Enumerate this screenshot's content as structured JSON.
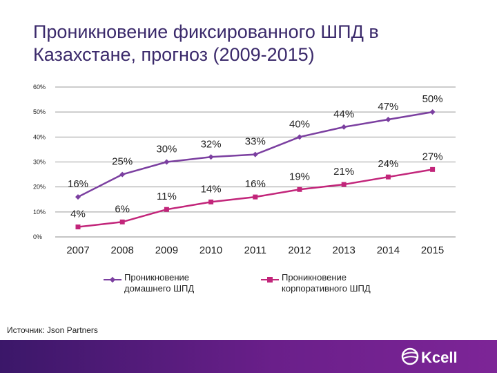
{
  "title": "Проникновение фиксированного ШПД в Казахстане, прогноз (2009-2015)",
  "chart_data": {
    "type": "line",
    "title": "Проникновение фиксированного ШПД в Казахстане, прогноз (2009-2015)",
    "categories": [
      "2007",
      "2008",
      "2009",
      "2010",
      "2011",
      "2012",
      "2013",
      "2014",
      "2015"
    ],
    "ylim": [
      0,
      60
    ],
    "yticks": [
      0,
      10,
      20,
      30,
      40,
      50,
      60
    ],
    "ytick_labels": [
      "0%",
      "10%",
      "20%",
      "30%",
      "40%",
      "50%",
      "60%"
    ],
    "grid": true,
    "series": [
      {
        "name": "Проникновение домашнего ШПД",
        "color": "#7b3fa0",
        "values": [
          16,
          25,
          30,
          32,
          33,
          40,
          44,
          47,
          50
        ],
        "labels": [
          "16%",
          "25%",
          "30%",
          "32%",
          "33%",
          "40%",
          "44%",
          "47%",
          "50%"
        ]
      },
      {
        "name": "Проникновение корпоративного ШПД",
        "color": "#c2257a",
        "values": [
          4,
          6,
          11,
          14,
          16,
          19,
          21,
          24,
          27
        ],
        "labels": [
          "4%",
          "6%",
          "11%",
          "14%",
          "16%",
          "19%",
          "21%",
          "24%",
          "27%"
        ]
      }
    ],
    "legend_position": "bottom"
  },
  "legend": {
    "home": {
      "line1": "Проникновение",
      "line2": "домашнего ШПД",
      "color": "#7b3fa0"
    },
    "corporate": {
      "line1": "Проникновение",
      "line2": "корпоративного ШПД",
      "color": "#c2257a"
    }
  },
  "source": "Источник: Json Partners",
  "logo": {
    "text": "Kcell",
    "icon": "kcell-logo-icon"
  }
}
